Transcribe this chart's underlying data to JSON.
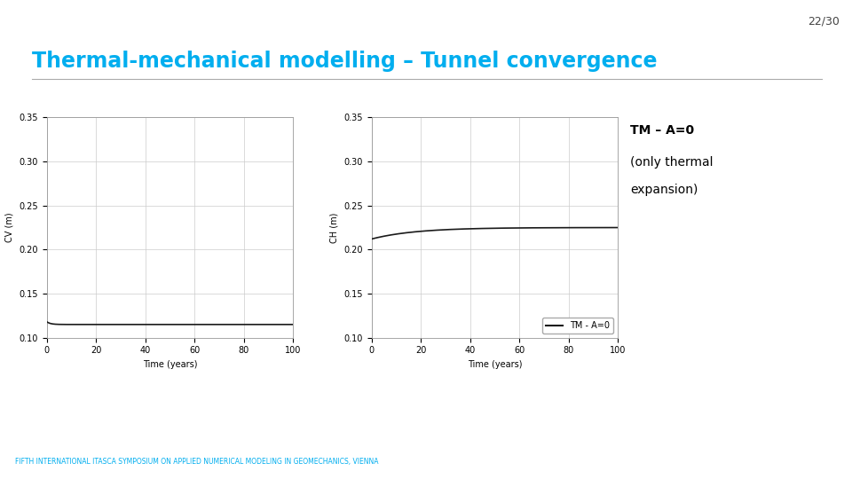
{
  "slide_number": "22/30",
  "title": "Thermal-mechanical modelling – Tunnel convergence",
  "plot1_ylabel": "CV (m)",
  "plot2_ylabel": "CH (m)",
  "xlabel": "Time (years)",
  "ylim": [
    0.1,
    0.35
  ],
  "xlim": [
    0,
    100
  ],
  "yticks": [
    0.1,
    0.15,
    0.2,
    0.25,
    0.3,
    0.35
  ],
  "xticks": [
    0,
    20,
    40,
    60,
    80,
    100
  ],
  "legend_label": "TM - A=0",
  "title_color": "#00AEEF",
  "line_color": "#1a1a1a",
  "background_color": "#ffffff",
  "grid_color": "#cccccc",
  "footer_text": "FIFTH INTERNATIONAL ITASCA SYMPOSIUM ON APPLIED NUMERICAL MODELING IN GEOMECHANICS, VIENNA",
  "footer_color": "#00AEEF",
  "annotation_line1_bold": "TM – A=0",
  "annotation_line2": "(only thermal",
  "annotation_line3": "expansion)"
}
